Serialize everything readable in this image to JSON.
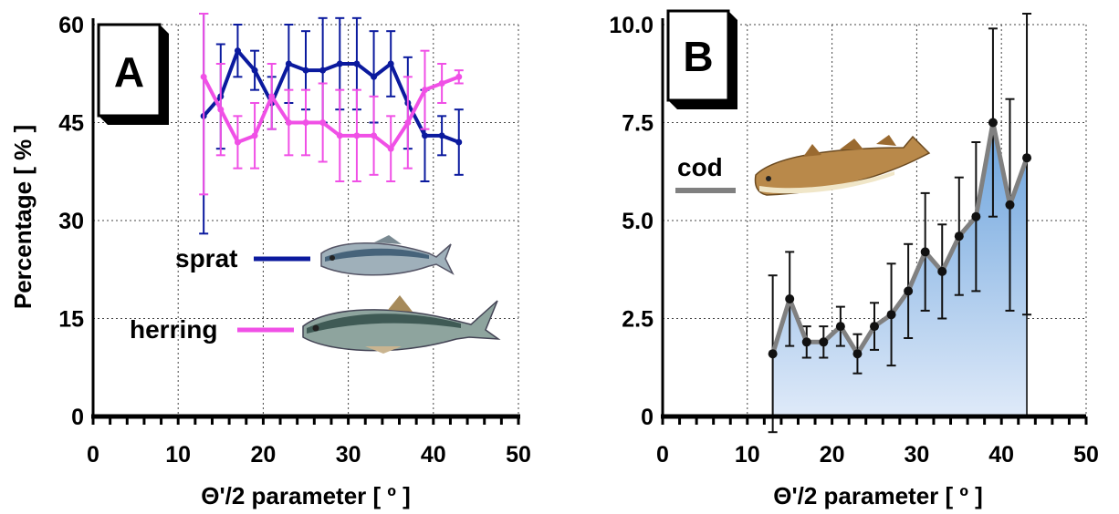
{
  "chart_data": [
    {
      "panel": "A",
      "type": "line",
      "xlabel": "Θ'/2 parameter [ º ]",
      "ylabel": "Percentage [ % ]",
      "xlim": [
        0,
        50
      ],
      "ylim": [
        0,
        60
      ],
      "x_ticks": [
        0,
        10,
        20,
        30,
        40,
        50
      ],
      "y_ticks": [
        0,
        15,
        30,
        45,
        60
      ],
      "grid": true,
      "series": [
        {
          "name": "sprat",
          "color": "#0b1a9e",
          "x": [
            13,
            15,
            17,
            19,
            21,
            23,
            25,
            27,
            29,
            31,
            33,
            35,
            37,
            39,
            41,
            43
          ],
          "y": [
            46,
            49,
            56,
            53,
            48,
            54,
            53,
            53,
            54,
            54,
            52,
            54,
            48,
            43,
            43,
            42
          ],
          "err": [
            18,
            8,
            4,
            3,
            4,
            6,
            6,
            8,
            7,
            7,
            7,
            5,
            7,
            7,
            3,
            5
          ]
        },
        {
          "name": "herring",
          "color": "#f050e6",
          "x": [
            13,
            15,
            17,
            19,
            21,
            23,
            25,
            27,
            29,
            31,
            33,
            35,
            37,
            39,
            41,
            43
          ],
          "y": [
            52,
            47,
            42,
            43,
            49,
            45,
            45,
            45,
            43,
            43,
            43,
            41,
            45,
            50,
            51,
            52
          ],
          "err": [
            18,
            7,
            4,
            5,
            5,
            5,
            5,
            6,
            7,
            7,
            6,
            5,
            7,
            6,
            3,
            1
          ]
        }
      ]
    },
    {
      "panel": "B",
      "type": "area",
      "xlabel": "Θ'/2 parameter [ º ]",
      "ylabel": "",
      "xlim": [
        0,
        50
      ],
      "ylim": [
        0,
        10
      ],
      "x_ticks": [
        0,
        10,
        20,
        30,
        40,
        50
      ],
      "y_ticks": [
        "0",
        "2.5",
        "5.0",
        "7.5",
        "10.0"
      ],
      "grid": true,
      "series": [
        {
          "name": "cod",
          "color": "#808080",
          "fill_color": "#6aa2dc",
          "x": [
            13,
            15,
            17,
            19,
            21,
            23,
            25,
            27,
            29,
            31,
            33,
            35,
            37,
            39,
            41,
            43
          ],
          "y": [
            1.6,
            3.0,
            1.9,
            1.9,
            2.3,
            1.6,
            2.3,
            2.6,
            3.2,
            4.2,
            3.7,
            4.6,
            5.1,
            7.5,
            5.4,
            6.6
          ],
          "err": [
            2.0,
            1.2,
            0.4,
            0.4,
            0.5,
            0.5,
            0.6,
            1.3,
            1.2,
            1.5,
            1.2,
            1.5,
            1.9,
            2.4,
            2.7,
            4.0
          ]
        }
      ]
    }
  ]
}
